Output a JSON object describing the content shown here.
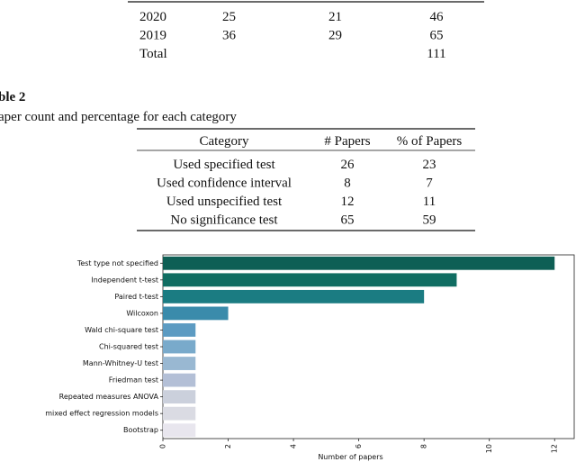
{
  "table1": {
    "rows": [
      [
        "2020",
        "25",
        "21",
        "46"
      ],
      [
        "2019",
        "36",
        "29",
        "65"
      ]
    ],
    "total": {
      "label": "Total",
      "value": "111"
    }
  },
  "table2": {
    "label": "ble 2",
    "caption": "aper count and percentage for each category",
    "header": [
      "Category",
      "# Papers",
      "% of Papers"
    ],
    "rows": [
      [
        "Used specified test",
        "26",
        "23"
      ],
      [
        "Used confidence interval",
        "8",
        "7"
      ],
      [
        "Used unspecified test",
        "12",
        "11"
      ],
      [
        "No significance test",
        "65",
        "59"
      ]
    ]
  },
  "chart_data": {
    "type": "barh",
    "x_label": "Number of papers",
    "categories": [
      "Test type not specified",
      "Independent t-test",
      "Paired t-test",
      "Wilcoxon",
      "Wald chi-square test",
      "Chi-squared test",
      "Mann-Whitney-U test",
      "Friedman test",
      "Repeated measures ANOVA",
      "mixed effect regression models",
      "Bootstrap"
    ],
    "values": [
      12,
      9,
      8,
      2,
      1,
      1,
      1,
      1,
      1,
      1,
      1
    ],
    "colors": [
      "#0e5f55",
      "#106d62",
      "#1b7c82",
      "#3a8bab",
      "#5c9bc2",
      "#79aacb",
      "#99b8d2",
      "#b3bfd6",
      "#cbd0dc",
      "#dadbe3",
      "#e8e6ee"
    ],
    "xlim": [
      0,
      12.6
    ],
    "xticks": [
      0,
      2,
      4,
      6,
      8,
      10,
      12
    ]
  }
}
